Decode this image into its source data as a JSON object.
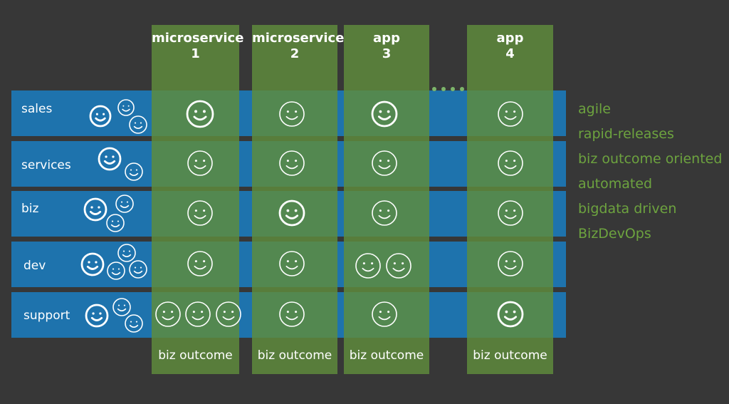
{
  "rows": [
    {
      "label": "sales"
    },
    {
      "label": "services"
    },
    {
      "label": "biz"
    },
    {
      "label": "dev"
    },
    {
      "label": "support"
    }
  ],
  "columns": [
    {
      "line1": "microservice",
      "line2": "1",
      "footer": "biz outcome"
    },
    {
      "line1": "microservice",
      "line2": "2",
      "footer": "biz outcome"
    },
    {
      "line1": "app",
      "line2": "3",
      "footer": "biz outcome"
    },
    {
      "line1": "app",
      "line2": "4",
      "footer": "biz outcome"
    }
  ],
  "attributes": [
    "agile",
    "rapid-releases",
    "biz outcome oriented",
    "automated",
    "bigdata driven",
    "BizDevOps"
  ],
  "colors": {
    "background": "#373737",
    "row_blue": "#1e73ad",
    "column_green": "#5f8c3c",
    "attribute_text": "#6da33f",
    "smiley": "#ffffff"
  }
}
